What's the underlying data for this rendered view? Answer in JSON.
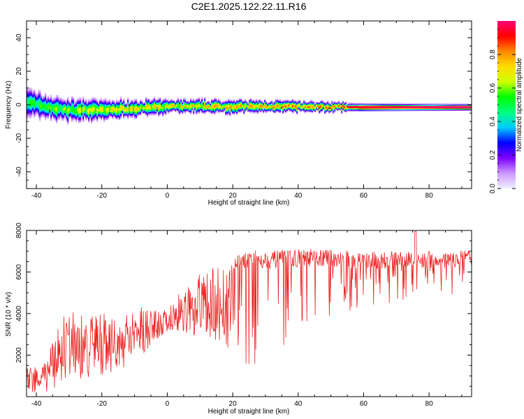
{
  "title": "C2E1.2025.122.22.11.R16",
  "chart_data": [
    {
      "type": "heatmap",
      "xlabel": "Height of straight line (km)",
      "ylabel": "Frequency (Hz)",
      "xlim": [
        -43,
        93
      ],
      "ylim": [
        -50,
        50
      ],
      "xticks": [
        -40,
        -20,
        0,
        20,
        40,
        60,
        80
      ],
      "yticks": [
        -40,
        -20,
        0,
        20,
        40
      ],
      "colorbar": {
        "label": "Normalized spectral amplitude",
        "range": [
          0,
          1
        ],
        "ticks": [
          "0.0",
          "0.2",
          "0.4",
          "0.6",
          "0.8"
        ],
        "colors": [
          "#f0f0ff",
          "#cc99ff",
          "#7f00ff",
          "#0000ff",
          "#00ccff",
          "#00ff80",
          "#00ff00",
          "#ccff00",
          "#ffdd00",
          "#ff8800",
          "#ff0000",
          "#ff0077"
        ]
      },
      "band": {
        "center_hz": [
          [
            -43,
            2
          ],
          [
            -40,
            0
          ],
          [
            -35,
            -2
          ],
          [
            -30,
            -3
          ],
          [
            -20,
            -3
          ],
          [
            -10,
            -2
          ],
          [
            0,
            -1
          ],
          [
            20,
            -1
          ],
          [
            40,
            -1
          ],
          [
            60,
            -1.5
          ],
          [
            93,
            -1.5
          ]
        ],
        "halfwidth_hz": [
          [
            -43,
            6
          ],
          [
            -35,
            5
          ],
          [
            -20,
            4
          ],
          [
            0,
            3
          ],
          [
            30,
            2.5
          ],
          [
            60,
            1.8
          ],
          [
            93,
            1.5
          ]
        ],
        "peak_amplitude": [
          [
            -43,
            0.55
          ],
          [
            -20,
            0.75
          ],
          [
            0,
            0.8
          ],
          [
            30,
            0.85
          ],
          [
            60,
            0.95
          ],
          [
            93,
            1.0
          ]
        ]
      }
    },
    {
      "type": "line",
      "xlabel": "Height of straight line (km)",
      "ylabel": "SNR (10 * v/v)",
      "xlim": [
        -43,
        93
      ],
      "ylim": [
        0,
        8000
      ],
      "xticks": [
        -40,
        -20,
        0,
        20,
        40,
        60,
        80
      ],
      "yticks": [
        2000,
        4000,
        6000,
        8000
      ],
      "series": [
        {
          "color": "#ee2222",
          "envelope_x": [
            -43,
            -38,
            -33,
            -30,
            -25,
            -20,
            -15,
            -10,
            -5,
            0,
            3,
            5,
            8,
            10,
            15,
            18,
            20,
            25,
            30,
            40,
            50,
            60,
            70,
            80,
            93
          ],
          "envelope_upper": [
            1400,
            1600,
            3500,
            4300,
            3800,
            4200,
            3800,
            4300,
            4700,
            4400,
            4800,
            5400,
            5200,
            6000,
            6300,
            6100,
            6700,
            7100,
            7000,
            7100,
            7100,
            7000,
            7000,
            7000,
            7050
          ],
          "dip_depth_frac": [
            0.9,
            0.9,
            0.85,
            0.8,
            0.8,
            0.75,
            0.7,
            0.6,
            0.5,
            0.3,
            0.35,
            0.45,
            0.5,
            0.5,
            0.6,
            0.6,
            0.7,
            0.8,
            0.8,
            0.55,
            0.45,
            0.4,
            0.35,
            0.3,
            0.3
          ]
        }
      ]
    }
  ]
}
